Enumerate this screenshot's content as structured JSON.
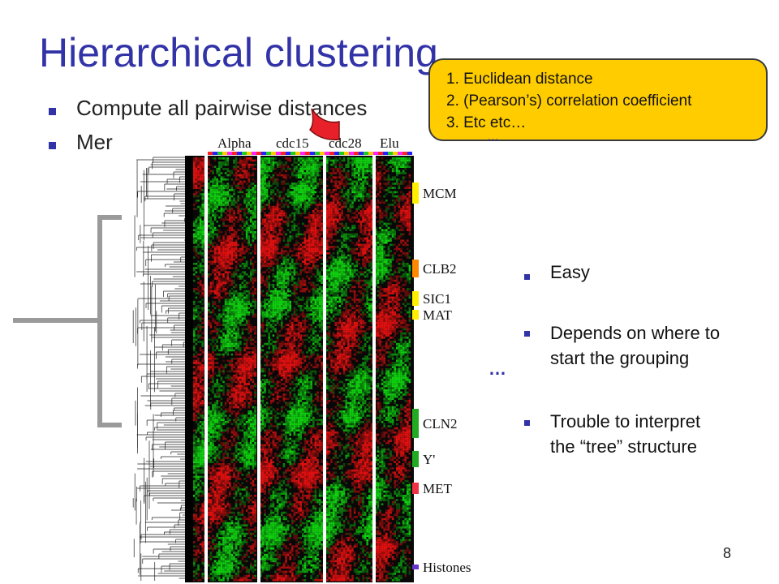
{
  "slide": {
    "title": "Hierarchical clustering",
    "bullets": [
      "Compute all pairwise distances",
      "Mer"
    ],
    "callout": [
      "1. Euclidean distance",
      "2. (Pearson’s) correlation coefficient",
      "3. Etc etc…"
    ],
    "callout_ellipsis": "…",
    "points": [
      "Easy",
      "Depends on where to start the grouping",
      "Trouble to interpret the “tree” structure"
    ],
    "points_lines": [
      [
        "Easy"
      ],
      [
        "Depends on where to",
        "start the grouping"
      ],
      [
        "Trouble to interpret",
        "the “tree” structure"
      ]
    ],
    "ellipsis": "…",
    "page_number": "8"
  },
  "heatmap": {
    "conditions": [
      "Alpha",
      "cdc15",
      "cdc28",
      "Elu"
    ],
    "cluster_labels": [
      "MCM",
      "CLB2",
      "SIC1",
      "MAT",
      "CLN2",
      "Y'",
      "MET",
      "Histones"
    ],
    "cluster_colors": [
      "#ffee00",
      "#ff8800",
      "#ffee00",
      "#ffee00",
      "#22aa22",
      "#22aa22",
      "#ee3344",
      "#6633cc"
    ],
    "colors": {
      "up": "#e01010",
      "down": "#10d010",
      "neutral": "#101010"
    }
  },
  "colors": {
    "title": "#3333a8",
    "callout_fill": "#ffcc00",
    "pointer": "#e8202a"
  }
}
